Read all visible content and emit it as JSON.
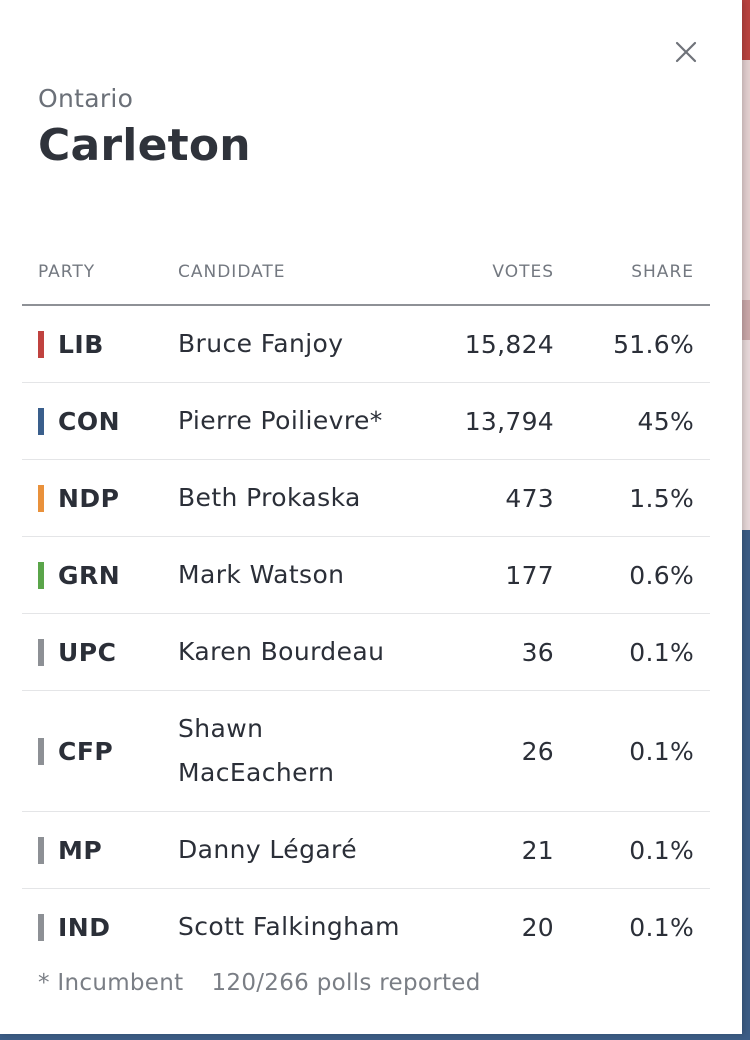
{
  "header": {
    "province": "Ontario",
    "riding": "Carleton",
    "close_icon": "close-icon"
  },
  "table": {
    "columns": {
      "party": "PARTY",
      "candidate": "CANDIDATE",
      "votes": "VOTES",
      "share": "SHARE"
    },
    "rows": [
      {
        "party": "LIB",
        "color": "#c0423f",
        "candidate": "Bruce Fanjoy",
        "votes": "15,824",
        "share": "51.6%"
      },
      {
        "party": "CON",
        "color": "#3a5f8c",
        "candidate": "Pierre Poilievre*",
        "votes": "13,794",
        "share": "45%"
      },
      {
        "party": "NDP",
        "color": "#e9913b",
        "candidate": "Beth Prokaska",
        "votes": "473",
        "share": "1.5%"
      },
      {
        "party": "GRN",
        "color": "#5aa54a",
        "candidate": "Mark Watson",
        "votes": "177",
        "share": "0.6%"
      },
      {
        "party": "UPC",
        "color": "#8d9095",
        "candidate": "Karen Bourdeau",
        "votes": "36",
        "share": "0.1%"
      },
      {
        "party": "CFP",
        "color": "#8d9095",
        "candidate": "Shawn MacEachern",
        "votes": "26",
        "share": "0.1%"
      },
      {
        "party": "MP",
        "color": "#8d9095",
        "candidate": "Danny Légaré",
        "votes": "21",
        "share": "0.1%"
      },
      {
        "party": "IND",
        "color": "#8d9095",
        "candidate": "Scott Falkingham",
        "votes": "20",
        "share": "0.1%"
      }
    ]
  },
  "footer": {
    "incumbent_note": "* Incumbent",
    "polls_reported": "120/266 polls reported"
  }
}
